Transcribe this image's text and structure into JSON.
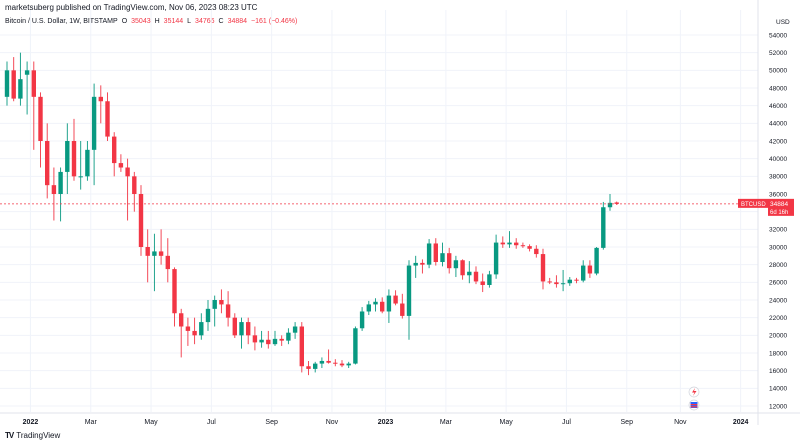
{
  "header": {
    "publisher": "marketsuberg published on TradingView.com, Nov 06, 2023 08:23 UTC"
  },
  "legend": {
    "symbol_desc": "Bitcoin / U.S. Dollar, 1W, BITSTAMP",
    "o_label": "O",
    "o_value": "35043",
    "h_label": "H",
    "h_value": "35144",
    "l_label": "L",
    "l_value": "34766",
    "c_label": "C",
    "c_value": "34884",
    "change": "−161 (−0.46%)"
  },
  "price_tag": {
    "symbol": "BTCUSD",
    "price": "34884",
    "countdown": "6d 16h"
  },
  "brand": {
    "name": "TradingView",
    "logo": "TV"
  },
  "colors": {
    "up": "#089981",
    "down": "#f23645",
    "grid": "#f0f3fa",
    "text": "#131722"
  },
  "chart_data": {
    "type": "candlestick",
    "currency": "USD",
    "ylim": [
      12000,
      55000
    ],
    "y_ticks": [
      12000,
      14000,
      16000,
      18000,
      20000,
      22000,
      24000,
      26000,
      28000,
      30000,
      32000,
      34000,
      36000,
      38000,
      40000,
      42000,
      44000,
      46000,
      48000,
      50000,
      52000,
      54000
    ],
    "x_ticks": [
      {
        "label": "2022",
        "bold": true,
        "index": 3.5
      },
      {
        "label": "Mar",
        "bold": false,
        "index": 12.5
      },
      {
        "label": "May",
        "bold": false,
        "index": 21.5
      },
      {
        "label": "Jul",
        "bold": false,
        "index": 30.5
      },
      {
        "label": "Sep",
        "bold": false,
        "index": 39.5
      },
      {
        "label": "Nov",
        "bold": false,
        "index": 48.5
      },
      {
        "label": "2023",
        "bold": true,
        "index": 56.5
      },
      {
        "label": "Mar",
        "bold": false,
        "index": 65.5
      },
      {
        "label": "May",
        "bold": false,
        "index": 74.5
      },
      {
        "label": "Jul",
        "bold": false,
        "index": 83.5
      },
      {
        "label": "Sep",
        "bold": false,
        "index": 92.5
      },
      {
        "label": "Nov",
        "bold": false,
        "index": 100.5
      },
      {
        "label": "2024",
        "bold": true,
        "index": 109.5
      }
    ],
    "last_price": 34884,
    "candles": [
      [
        47000,
        51000,
        46000,
        50000
      ],
      [
        50000,
        51500,
        46500,
        46800
      ],
      [
        46800,
        52000,
        46000,
        49000
      ],
      [
        49500,
        51000,
        45000,
        50000
      ],
      [
        50000,
        51000,
        41000,
        47000
      ],
      [
        47000,
        47500,
        39000,
        42000
      ],
      [
        42000,
        44000,
        35500,
        37000
      ],
      [
        37000,
        39000,
        33000,
        36000
      ],
      [
        36000,
        39000,
        32900,
        38500
      ],
      [
        38500,
        44000,
        36000,
        42000
      ],
      [
        42000,
        44500,
        37500,
        38000
      ],
      [
        38000,
        42000,
        36500,
        38000
      ],
      [
        38000,
        42000,
        37500,
        41000
      ],
      [
        41000,
        48500,
        37000,
        47000
      ],
      [
        47000,
        48300,
        44000,
        46500
      ],
      [
        46500,
        47500,
        42000,
        42500
      ],
      [
        42500,
        43000,
        38000,
        39500
      ],
      [
        39500,
        40500,
        38500,
        39000
      ],
      [
        39000,
        40000,
        33000,
        38000
      ],
      [
        38000,
        38500,
        34000,
        36000
      ],
      [
        36000,
        37000,
        29000,
        30000
      ],
      [
        30000,
        32000,
        26000,
        29000
      ],
      [
        29000,
        31500,
        25000,
        29500
      ],
      [
        29500,
        32000,
        28000,
        29000
      ],
      [
        29000,
        31000,
        26000,
        27500
      ],
      [
        27500,
        27700,
        21000,
        22500
      ],
      [
        22500,
        23000,
        17500,
        21000
      ],
      [
        21000,
        22000,
        18800,
        20500
      ],
      [
        20500,
        22000,
        19000,
        20000
      ],
      [
        20000,
        22500,
        19500,
        21500
      ],
      [
        21500,
        24000,
        20500,
        23000
      ],
      [
        23000,
        24500,
        21000,
        24000
      ],
      [
        24000,
        25200,
        22500,
        23500
      ],
      [
        23500,
        25000,
        21000,
        22000
      ],
      [
        22000,
        22500,
        19700,
        20000
      ],
      [
        20000,
        22000,
        18500,
        21500
      ],
      [
        21500,
        22000,
        19000,
        20000
      ],
      [
        20000,
        21000,
        18300,
        19200
      ],
      [
        19200,
        20500,
        18600,
        19500
      ],
      [
        19500,
        20500,
        18500,
        19000
      ],
      [
        19000,
        20500,
        18800,
        19600
      ],
      [
        19600,
        20000,
        18800,
        19400
      ],
      [
        19400,
        20800,
        19000,
        20300
      ],
      [
        20300,
        21500,
        19600,
        21000
      ],
      [
        21000,
        21500,
        15800,
        16500
      ],
      [
        16500,
        17100,
        15500,
        16200
      ],
      [
        16200,
        17000,
        15800,
        16800
      ],
      [
        16800,
        17500,
        16300,
        17100
      ],
      [
        17100,
        18400,
        16800,
        16900
      ],
      [
        16900,
        17300,
        16500,
        16800
      ],
      [
        16800,
        17200,
        16400,
        16600
      ],
      [
        16600,
        17000,
        16300,
        16800
      ],
      [
        16800,
        21000,
        16700,
        20800
      ],
      [
        20800,
        23200,
        20500,
        22700
      ],
      [
        22700,
        23900,
        22300,
        23500
      ],
      [
        23500,
        24200,
        22700,
        23800
      ],
      [
        23800,
        24300,
        22500,
        22700
      ],
      [
        22700,
        25200,
        21400,
        24500
      ],
      [
        24500,
        25100,
        23400,
        23600
      ],
      [
        23600,
        24700,
        21900,
        22200
      ],
      [
        22200,
        28500,
        19500,
        27900
      ],
      [
        27900,
        29000,
        26500,
        28200
      ],
      [
        28200,
        28600,
        27000,
        28000
      ],
      [
        28000,
        30900,
        27600,
        30400
      ],
      [
        30400,
        31000,
        27900,
        28300
      ],
      [
        28300,
        30500,
        27800,
        29300
      ],
      [
        29300,
        29900,
        27000,
        27600
      ],
      [
        27600,
        29000,
        26600,
        28500
      ],
      [
        28500,
        28600,
        26300,
        26800
      ],
      [
        26800,
        28400,
        25900,
        27200
      ],
      [
        27200,
        27800,
        25800,
        26100
      ],
      [
        26100,
        27000,
        24900,
        25700
      ],
      [
        25700,
        27300,
        25400,
        26900
      ],
      [
        26900,
        31400,
        26400,
        30500
      ],
      [
        30500,
        31200,
        29900,
        30300
      ],
      [
        30300,
        31800,
        29900,
        30500
      ],
      [
        30500,
        31000,
        29800,
        30200
      ],
      [
        30200,
        30500,
        29900,
        30100
      ],
      [
        30100,
        30300,
        29500,
        29800
      ],
      [
        29800,
        30200,
        28800,
        29200
      ],
      [
        29200,
        29800,
        25200,
        26100
      ],
      [
        26100,
        26500,
        25800,
        26000
      ],
      [
        26000,
        26800,
        25400,
        25800
      ],
      [
        25800,
        27400,
        25000,
        25900
      ],
      [
        25900,
        26600,
        25600,
        26300
      ],
      [
        26300,
        26500,
        25900,
        26200
      ],
      [
        26200,
        28500,
        26000,
        27900
      ],
      [
        27900,
        28500,
        26500,
        27000
      ],
      [
        27000,
        30000,
        26800,
        29900
      ],
      [
        29900,
        35100,
        29700,
        34500
      ],
      [
        34500,
        36000,
        34100,
        35000
      ],
      [
        35043,
        35144,
        34766,
        34884
      ]
    ]
  }
}
